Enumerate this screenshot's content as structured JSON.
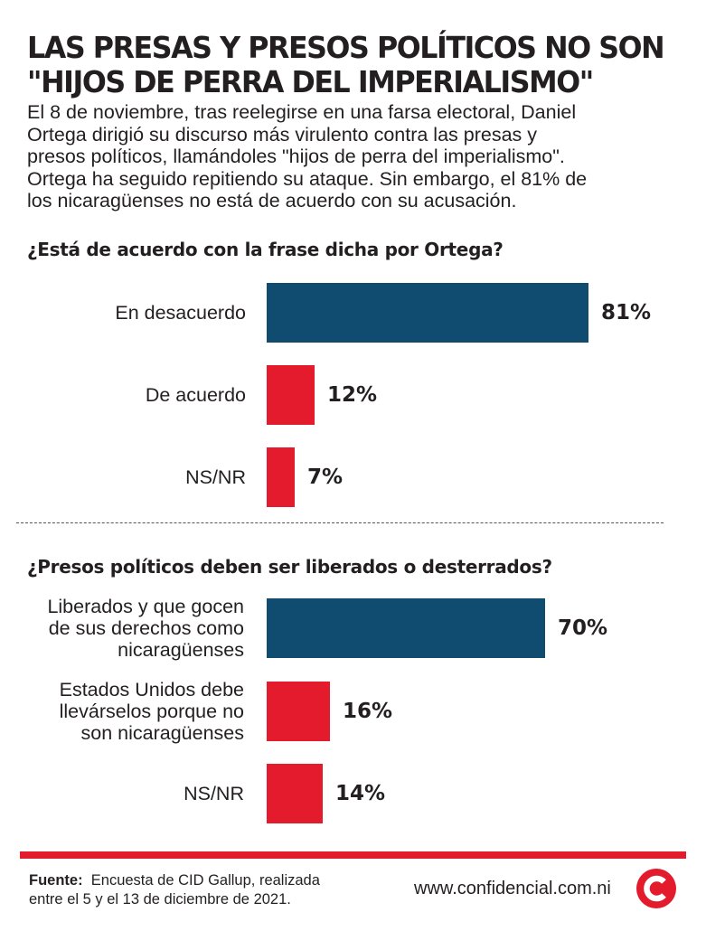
{
  "title_lines": [
    "LAS PRESAS Y PRESOS POLÍTICOS NO SON",
    "\"HIJOS DE PERRA DEL IMPERIALISMO\""
  ],
  "intro_lines": [
    "El 8 de noviembre, tras reelegirse en una farsa electoral, Daniel",
    "Ortega dirigió su discurso más virulento contra las presas y",
    "presos políticos, llamándoles \"hijos de perra del imperialismo\".",
    "Ortega ha seguido repitiendo su ataque. Sin embargo, el 81% de",
    "los nicaragüenses no está de acuerdo con su acusación."
  ],
  "colors": {
    "primary_bar": "#0f4c70",
    "secondary_bar": "#e31b2c",
    "text": "#231f20"
  },
  "chart_data": [
    {
      "type": "bar",
      "orientation": "horizontal",
      "title": "¿Está de acuerdo con la frase dicha por Ortega?",
      "categories": [
        "En desacuerdo",
        "De acuerdo",
        "NS/NR"
      ],
      "category_lines": [
        [
          "En desacuerdo"
        ],
        [
          "De acuerdo"
        ],
        [
          "NS/NR"
        ]
      ],
      "values": [
        81,
        12,
        7
      ],
      "value_labels": [
        "81%",
        "12%",
        "7%"
      ],
      "unit": "%",
      "xlim": [
        0,
        100
      ],
      "grid": false,
      "legend": "none"
    },
    {
      "type": "bar",
      "orientation": "horizontal",
      "title": "¿Presos políticos deben ser liberados o desterrados?",
      "categories": [
        "Liberados y que gocen de sus derechos como nicaragüenses",
        "Estados Unidos debe llevárselos porque no son nicaragüenses",
        "NS/NR"
      ],
      "category_lines": [
        [
          "Liberados y que gocen",
          "de sus derechos como",
          "nicaragüenses"
        ],
        [
          "Estados Unidos debe",
          "llevárselos porque no",
          "son nicaragüenses"
        ],
        [
          "NS/NR"
        ]
      ],
      "values": [
        70,
        16,
        14
      ],
      "value_labels": [
        "70%",
        "16%",
        "14%"
      ],
      "unit": "%",
      "xlim": [
        0,
        100
      ],
      "grid": false,
      "legend": "none"
    }
  ],
  "footer": {
    "source_label": "Fuente:",
    "source_line1": "Encuesta de CID Gallup, realizada",
    "source_line2": "entre el 5 y el 13 de diciembre de 2021.",
    "site": "www.confidencial.com.ni",
    "logo_icon": "confidencial-c-logo-icon"
  }
}
